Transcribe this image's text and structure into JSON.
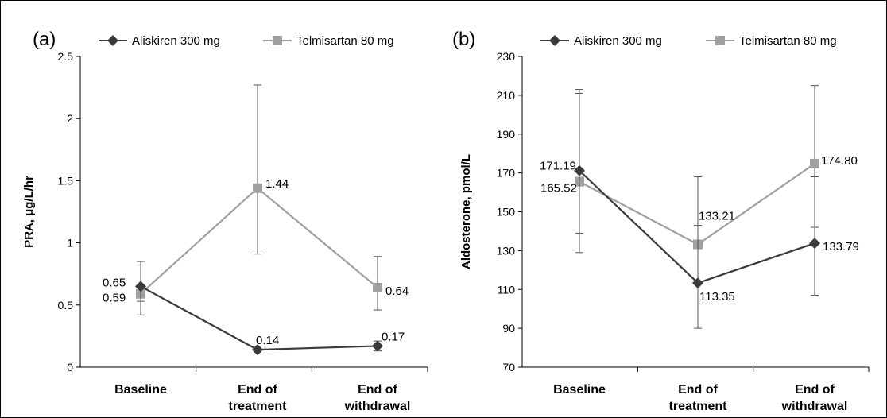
{
  "colors": {
    "aliskiren": "#3a3a3a",
    "telmisartan": "#a0a0a0",
    "axis": "#000000",
    "error_bar": "#555555"
  },
  "chart_data": [
    {
      "type": "line",
      "panel_label": "(a)",
      "ylabel": "PRA, μg/L/hr",
      "ylim": [
        0,
        2.5
      ],
      "yticks": [
        "0",
        "0.5",
        "1",
        "1.5",
        "2",
        "2.5"
      ],
      "categories": [
        [
          "Baseline"
        ],
        [
          "End of",
          "treatment"
        ],
        [
          "End of",
          "withdrawal"
        ]
      ],
      "legend_position": "top",
      "series": [
        {
          "name": "Aliskiren 300 mg",
          "marker": "diamond",
          "color": "#3a3a3a",
          "values": [
            0.65,
            0.14,
            0.17
          ],
          "labels": [
            "0.65",
            "0.14",
            "0.17"
          ],
          "err_low": [
            0.42,
            0.12,
            0.13
          ],
          "err_high": [
            0.85,
            0.16,
            0.21
          ]
        },
        {
          "name": "Telmisartan 80 mg",
          "marker": "square",
          "color": "#a0a0a0",
          "values": [
            0.59,
            1.44,
            0.64
          ],
          "labels": [
            "0.59",
            "1.44",
            "0.64"
          ],
          "err_low": [
            0.53,
            0.91,
            0.46
          ],
          "err_high": [
            0.65,
            2.27,
            0.89
          ]
        }
      ]
    },
    {
      "type": "line",
      "panel_label": "(b)",
      "ylabel": "Aldosterone, pmol/L",
      "ylim": [
        70,
        230
      ],
      "yticks": [
        "70",
        "90",
        "110",
        "130",
        "150",
        "170",
        "190",
        "210",
        "230"
      ],
      "categories": [
        [
          "Baseline"
        ],
        [
          "End of",
          "treatment"
        ],
        [
          "End of",
          "withdrawal"
        ]
      ],
      "legend_position": "top",
      "series": [
        {
          "name": "Aliskiren 300 mg",
          "marker": "diamond",
          "color": "#3a3a3a",
          "values": [
            171.19,
            113.35,
            133.79
          ],
          "labels": [
            "171.19",
            "113.35",
            "133.79"
          ],
          "err_low": [
            129,
            90,
            107
          ],
          "err_high": [
            213,
            143,
            168
          ]
        },
        {
          "name": "Telmisartan 80 mg",
          "marker": "square",
          "color": "#a0a0a0",
          "values": [
            165.52,
            133.21,
            174.8
          ],
          "labels": [
            "165.52",
            "133.21",
            "174.80"
          ],
          "err_low": [
            139,
            113,
            142
          ],
          "err_high": [
            211,
            168,
            215
          ]
        }
      ]
    }
  ]
}
